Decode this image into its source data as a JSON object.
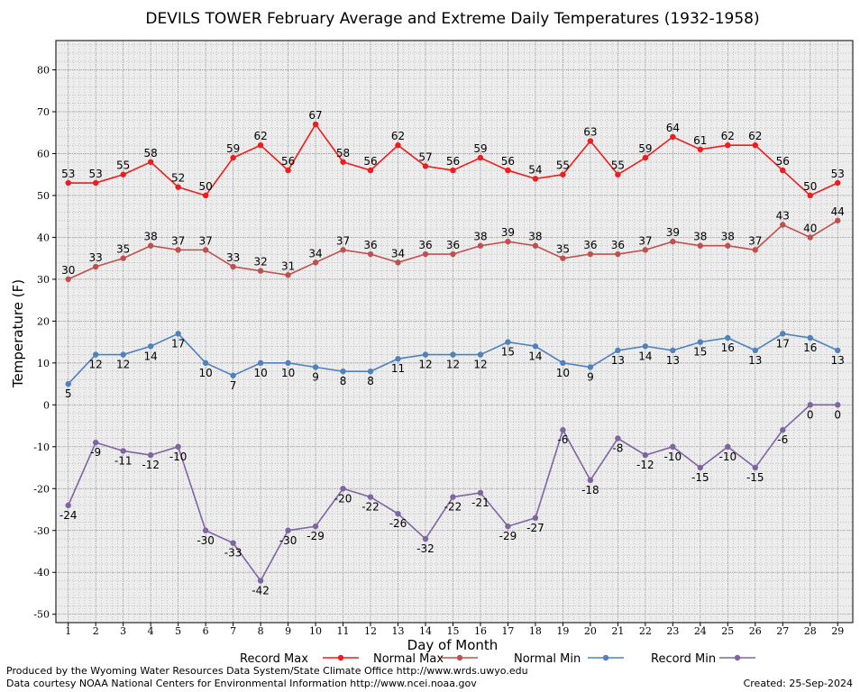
{
  "chart_data": {
    "type": "line",
    "title": "DEVILS TOWER February Average and Extreme Daily Temperatures (1932-1958)",
    "xlabel": "Day of Month",
    "ylabel": "Temperature (F)",
    "x": [
      1,
      2,
      3,
      4,
      5,
      6,
      7,
      8,
      9,
      10,
      11,
      12,
      13,
      14,
      15,
      16,
      17,
      18,
      19,
      20,
      21,
      22,
      23,
      24,
      25,
      26,
      27,
      28,
      29
    ],
    "xlim": [
      0.55,
      29.55
    ],
    "ylim": [
      -52,
      87
    ],
    "yticks": [
      -50,
      -40,
      -30,
      -20,
      -10,
      0,
      10,
      20,
      30,
      40,
      50,
      60,
      70,
      80
    ],
    "grid": true,
    "legend_position": "bottom",
    "series": [
      {
        "name": "Record Max",
        "color": "#ee1c1c",
        "label_position": "above",
        "values": [
          53,
          53,
          55,
          58,
          52,
          50,
          59,
          62,
          56,
          67,
          58,
          56,
          62,
          57,
          56,
          59,
          56,
          54,
          55,
          63,
          55,
          59,
          64,
          61,
          62,
          62,
          56,
          50,
          53
        ]
      },
      {
        "name": "Normal Max",
        "color": "#c0504d",
        "label_position": "above",
        "values": [
          30,
          33,
          35,
          38,
          37,
          37,
          33,
          32,
          31,
          34,
          37,
          36,
          34,
          36,
          36,
          38,
          39,
          38,
          35,
          36,
          36,
          37,
          39,
          38,
          38,
          37,
          43,
          40,
          44
        ]
      },
      {
        "name": "Normal Min",
        "color": "#4f81bd",
        "label_position": "below",
        "values": [
          5,
          12,
          12,
          14,
          17,
          10,
          7,
          10,
          10,
          9,
          8,
          8,
          11,
          12,
          12,
          12,
          15,
          14,
          10,
          9,
          13,
          14,
          13,
          15,
          16,
          13,
          17,
          16,
          13
        ]
      },
      {
        "name": "Record Min",
        "color": "#8064a2",
        "label_position": "below",
        "values": [
          -24,
          -9,
          -11,
          -12,
          -10,
          -30,
          -33,
          -42,
          -30,
          -29,
          -20,
          -22,
          -26,
          -32,
          -22,
          -21,
          -29,
          -27,
          -6,
          -18,
          -8,
          -12,
          -10,
          -15,
          -10,
          -15,
          -6,
          0,
          0
        ]
      }
    ]
  },
  "footer": {
    "produced_by": "Produced by the Wyoming Water Resources Data System/State Climate Office http://www.wrds.uwyo.edu",
    "data_courtesy": "Data courtesy NOAA National Centers for Environmental Information http://www.ncei.noaa.gov",
    "created": "Created:  25-Sep-2024"
  }
}
